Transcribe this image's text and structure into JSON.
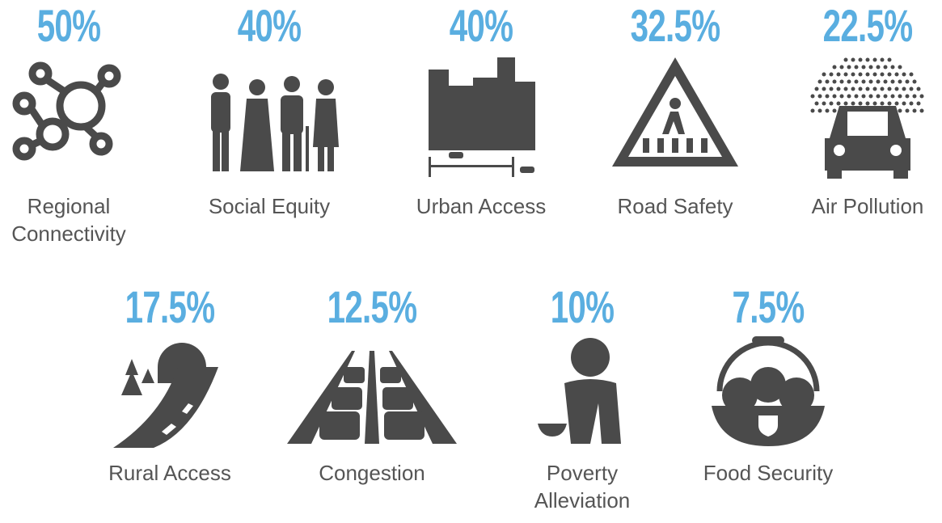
{
  "items": [
    {
      "value": "50%",
      "label": "Regional Connectivity"
    },
    {
      "value": "40%",
      "label": "Social Equity"
    },
    {
      "value": "40%",
      "label": "Urban Access"
    },
    {
      "value": "32.5%",
      "label": "Road Safety"
    },
    {
      "value": "22.5%",
      "label": "Air Pollution"
    },
    {
      "value": "17.5%",
      "label": "Rural Access"
    },
    {
      "value": "12.5%",
      "label": "Congestion"
    },
    {
      "value": "10%",
      "label": "Poverty Alleviation"
    },
    {
      "value": "7.5%",
      "label": "Food Security"
    }
  ]
}
